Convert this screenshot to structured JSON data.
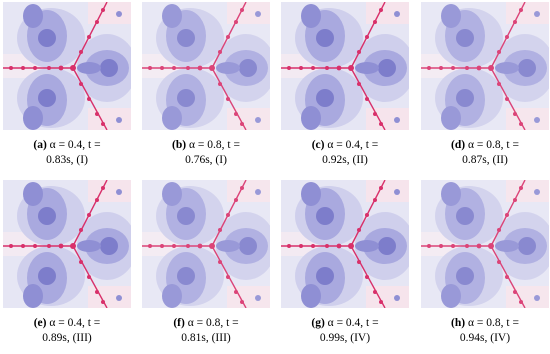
{
  "panels": [
    {
      "label": "(a)",
      "line1": "α = 0.4, t =",
      "line2": "0.83s, (I)"
    },
    {
      "label": "(b)",
      "line1": "α = 0.8, t =",
      "line2": "0.76s, (I)"
    },
    {
      "label": "(c)",
      "line1": "α = 0.4, t =",
      "line2": "0.92s, (II)"
    },
    {
      "label": "(d)",
      "line1": "α = 0.8, t =",
      "line2": "0.87s, (II)"
    },
    {
      "label": "(e)",
      "line1": "α = 0.4, t =",
      "line2": "0.89s, (III)"
    },
    {
      "label": "(f)",
      "line1": "α = 0.8, t =",
      "line2": "0.81s, (III)"
    },
    {
      "label": "(g)",
      "line1": "α = 0.4, t =",
      "line2": "0.99s, (IV)"
    },
    {
      "label": "(h)",
      "line1": "α = 0.8, t =",
      "line2": "0.94s, (IV)"
    }
  ]
}
